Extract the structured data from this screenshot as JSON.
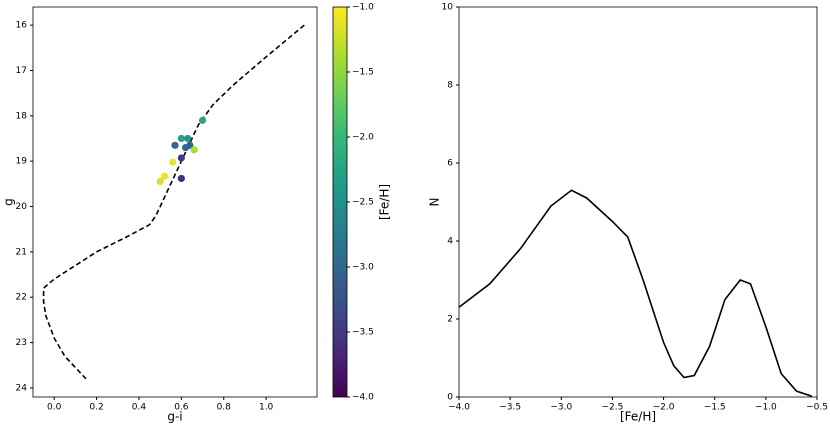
{
  "chart_data": [
    {
      "type": "scatter",
      "xlabel": "g-i",
      "ylabel": "g",
      "x": [
        0.7,
        0.6,
        0.63,
        0.57,
        0.62,
        0.64,
        0.66,
        0.6,
        0.56,
        0.52,
        0.5,
        0.6
      ],
      "y": [
        18.1,
        18.5,
        18.5,
        18.65,
        18.7,
        18.65,
        18.75,
        18.93,
        19.02,
        19.33,
        19.45,
        19.38
      ],
      "c": [
        -2.2,
        -2.3,
        -2.4,
        -3.0,
        -3.0,
        -3.1,
        -1.4,
        -3.5,
        -1.1,
        -1.1,
        -1.2,
        -3.6
      ],
      "colormap": "viridis",
      "line": {
        "x": [
          1.18,
          1.0,
          0.85,
          0.75,
          0.68,
          0.62,
          0.55,
          0.48,
          0.45,
          0.35,
          0.2,
          0.1,
          0.0,
          -0.05,
          -0.05,
          -0.04,
          0.0,
          0.05,
          0.15
        ],
        "y": [
          16.0,
          16.7,
          17.3,
          17.75,
          18.2,
          18.8,
          19.5,
          20.2,
          20.4,
          20.65,
          21.0,
          21.3,
          21.6,
          21.8,
          22.1,
          22.4,
          22.9,
          23.3,
          23.8
        ],
        "color": "#000000",
        "dashed": true
      },
      "xlim": [
        -0.1,
        1.24
      ],
      "ylim": [
        24.2,
        15.6
      ],
      "xticks": [
        {
          "value": 0,
          "label": "0.0"
        },
        0.2,
        0.4,
        0.6,
        0.8,
        {
          "value": 1,
          "label": "1.0"
        },
        0.2
      ],
      "yticks": [
        16,
        17,
        18,
        19,
        20,
        21,
        22,
        23,
        24
      ],
      "clim": [
        -4,
        -1
      ],
      "clabel": "[Fe/H]",
      "cticks": [
        {
          "value": -1,
          "label": "−1.0"
        },
        {
          "value": -1.5,
          "label": "−1.5"
        },
        {
          "value": -2,
          "label": "−2.0"
        },
        {
          "value": -2.5,
          "label": "−2.5"
        },
        {
          "value": -3,
          "label": "−3.0"
        },
        {
          "value": -3.5,
          "label": "−3.5"
        },
        {
          "value": -4,
          "label": "−4.0"
        }
      ]
    },
    {
      "type": "line",
      "xlabel": "[Fe/H]",
      "ylabel": "N",
      "x": [
        -4,
        -3.7,
        -3.4,
        -3.1,
        -2.9,
        -2.75,
        -2.5,
        -2.35,
        -2.2,
        -2.0,
        -1.9,
        -1.8,
        -1.7,
        -1.55,
        -1.4,
        -1.25,
        -1.15,
        -1.0,
        -0.85,
        -0.7,
        -0.55
      ],
      "values": [
        2.3,
        2.9,
        3.8,
        4.9,
        5.3,
        5.1,
        4.5,
        4.1,
        3.0,
        1.4,
        0.8,
        0.5,
        0.55,
        1.3,
        2.5,
        3.0,
        2.9,
        1.8,
        0.6,
        0.15,
        0.02
      ],
      "color": "#000000",
      "xlim": [
        -4,
        -0.5
      ],
      "ylim": [
        0,
        10
      ],
      "xticks": [
        {
          "value": -4,
          "label": "−4.0"
        },
        {
          "value": -3.5,
          "label": "−3.5"
        },
        {
          "value": -3,
          "label": "−3.0"
        },
        {
          "value": -2.5,
          "label": "−2.5"
        },
        {
          "value": -2,
          "label": "−2.0"
        },
        {
          "value": -1.5,
          "label": "−1.5"
        },
        {
          "value": -1,
          "label": "−1.0"
        },
        {
          "value": -0.5,
          "label": "−0.5"
        }
      ],
      "yticks": [
        0,
        2,
        4,
        6,
        8,
        10
      ]
    }
  ]
}
